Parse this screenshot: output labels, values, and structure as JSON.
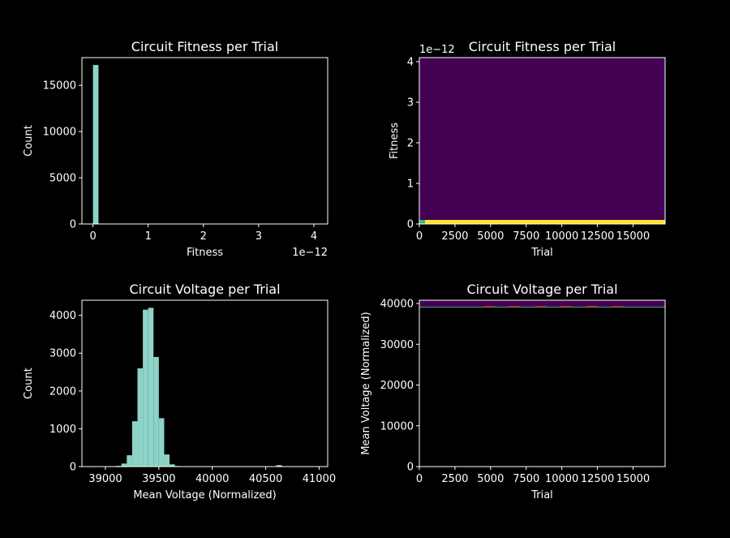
{
  "colors": {
    "background": "#000000",
    "foreground": "#ffffff",
    "histogram_fill": "#8dd3c7",
    "heatmap_low": "#440154",
    "heatmap_high": "#fde725",
    "heatmap_mid": "#35b779",
    "hot_low": "#000000",
    "hot_high": "#ff3300"
  },
  "chart_data": [
    {
      "type": "bar",
      "title": "Circuit Fitness per Trial",
      "xlabel": "Fitness",
      "ylabel": "Count",
      "x_offset_text": "1e−12",
      "xlim": [
        -0.2,
        4.25
      ],
      "ylim": [
        0,
        18000
      ],
      "xticks": [
        0,
        1,
        2,
        3,
        4
      ],
      "xtick_labels": [
        "0",
        "1",
        "2",
        "3",
        "4"
      ],
      "yticks": [
        0,
        5000,
        10000,
        15000
      ],
      "ytick_labels": [
        "0",
        "5000",
        "10000",
        "15000"
      ],
      "bin_edges": [
        0.0,
        0.1
      ],
      "values": [
        17200
      ],
      "grid": false
    },
    {
      "type": "heatmap",
      "title": "Circuit Fitness per Trial",
      "xlabel": "Trial",
      "ylabel": "Fitness",
      "y_offset_text": "1e−12",
      "xlim": [
        0,
        17250
      ],
      "ylim": [
        0,
        4.1
      ],
      "xticks": [
        0,
        2500,
        5000,
        7500,
        10000,
        12500,
        15000
      ],
      "xtick_labels": [
        "0",
        "2500",
        "5000",
        "7500",
        "10000",
        "12500",
        "15000"
      ],
      "yticks": [
        0,
        1,
        2,
        3,
        4
      ],
      "ytick_labels": [
        "0",
        "1",
        "2",
        "3",
        "4"
      ],
      "bands": [
        {
          "y_range": [
            0,
            0.1
          ],
          "x_range": [
            0,
            400
          ],
          "level": "mid"
        },
        {
          "y_range": [
            0,
            0.1
          ],
          "x_range": [
            400,
            17250
          ],
          "level": "high"
        }
      ],
      "grid": false
    },
    {
      "type": "bar",
      "title": "Circuit Voltage per Trial",
      "xlabel": "Mean Voltage (Normalized)",
      "ylabel": "Count",
      "xlim": [
        38780,
        41080
      ],
      "ylim": [
        0,
        4400
      ],
      "xticks": [
        39000,
        39500,
        40000,
        40500,
        41000
      ],
      "xtick_labels": [
        "39000",
        "39500",
        "40000",
        "40500",
        "41000"
      ],
      "yticks": [
        0,
        1000,
        2000,
        3000,
        4000
      ],
      "ytick_labels": [
        "0",
        "1000",
        "2000",
        "3000",
        "4000"
      ],
      "bin_edges": [
        39000,
        39050,
        39100,
        39150,
        39200,
        39250,
        39300,
        39350,
        39400,
        39450,
        39500,
        39550,
        39600,
        39650,
        39700,
        39750,
        39800,
        39850,
        39900,
        39950,
        40000,
        40050,
        40100,
        40150,
        40200,
        40250,
        40300,
        40350,
        40400,
        40450,
        40500,
        40550,
        40600,
        40650,
        40700
      ],
      "values": [
        0,
        0,
        20,
        80,
        300,
        1200,
        2600,
        4150,
        4200,
        2900,
        1280,
        320,
        60,
        15,
        5,
        2,
        1,
        0,
        0,
        0,
        5,
        3,
        2,
        0,
        0,
        0,
        0,
        0,
        0,
        0,
        5,
        10,
        40,
        8
      ],
      "grid": false
    },
    {
      "type": "heatmap",
      "title": "Circuit Voltage per Trial",
      "xlabel": "Trial",
      "ylabel": "Mean Voltage (Normalized)",
      "xlim": [
        0,
        17250
      ],
      "ylim": [
        0,
        40800
      ],
      "xticks": [
        0,
        2500,
        5000,
        7500,
        10000,
        12500,
        15000
      ],
      "xtick_labels": [
        "0",
        "2500",
        "5000",
        "7500",
        "10000",
        "12500",
        "15000"
      ],
      "yticks": [
        0,
        10000,
        20000,
        30000,
        40000
      ],
      "ytick_labels": [
        "0",
        "10000",
        "20000",
        "30000",
        "40000"
      ],
      "bands": [
        {
          "y_range": [
            39000,
            39200
          ],
          "x_range": [
            0,
            17250
          ],
          "level": "mid"
        },
        {
          "y_range": [
            39200,
            40800
          ],
          "x_range": [
            0,
            17250
          ],
          "level": "low"
        }
      ],
      "grid": false
    }
  ]
}
